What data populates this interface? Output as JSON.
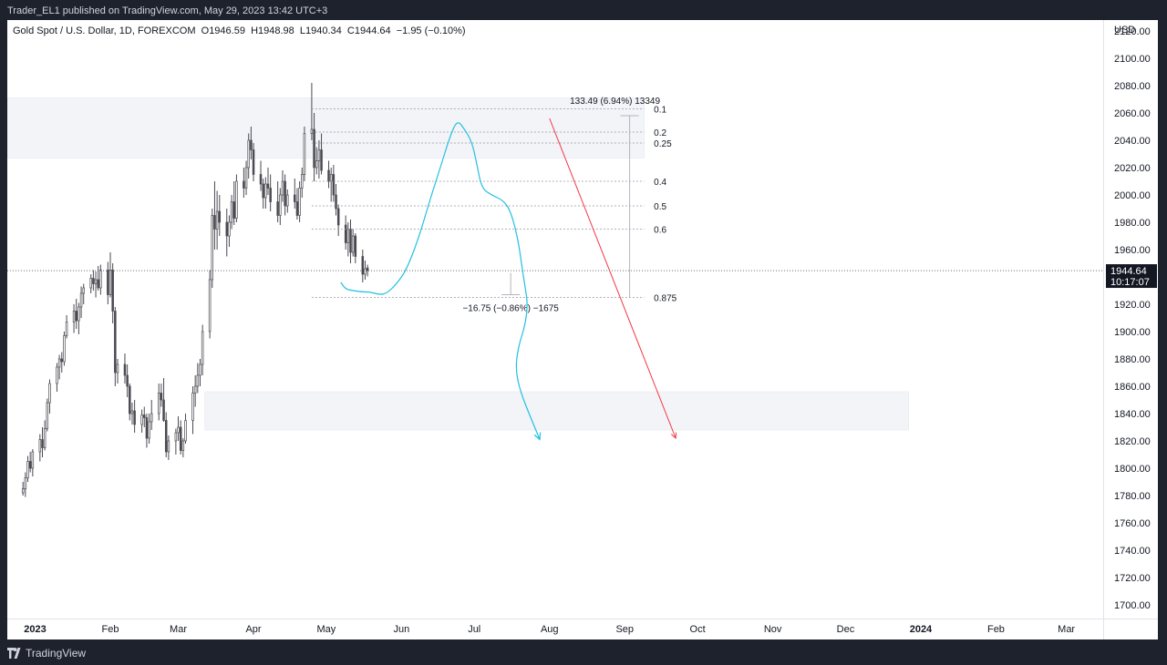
{
  "header": {
    "published_text": "Trader_EL1 published on TradingView.com, May 29, 2023 13:42 UTC+3"
  },
  "footer": {
    "brand": "TradingView"
  },
  "chart_data": {
    "type": "candlestick",
    "symbol_line": "Gold Spot / U.S. Dollar, 1D, FOREXCOM",
    "ohlc": {
      "open_label": "O",
      "open": "1946.59",
      "high_label": "H",
      "high": "1948.98",
      "low_label": "L",
      "low": "1940.34",
      "close_label": "C",
      "close": "1944.64",
      "change": "−1.95 (−0.10%)"
    },
    "currency": "USD",
    "ylim": [
      1690,
      2128
    ],
    "y_ticks": [
      "2120.00",
      "2100.00",
      "2080.00",
      "2060.00",
      "2040.00",
      "2020.00",
      "2000.00",
      "1980.00",
      "1960.00",
      "1940.00",
      "1920.00",
      "1900.00",
      "1880.00",
      "1860.00",
      "1840.00",
      "1820.00",
      "1800.00",
      "1780.00",
      "1760.00",
      "1740.00",
      "1720.00",
      "1700.00"
    ],
    "y_tick_values": [
      2120,
      2100,
      2080,
      2060,
      2040,
      2020,
      2000,
      1980,
      1960,
      1940,
      1920,
      1900,
      1880,
      1860,
      1840,
      1820,
      1800,
      1780,
      1760,
      1740,
      1720,
      1700
    ],
    "x_ticks": [
      {
        "label": "2023",
        "day": 0,
        "bold": true
      },
      {
        "label": "Feb",
        "day": 31
      },
      {
        "label": "Mar",
        "day": 59
      },
      {
        "label": "Apr",
        "day": 90
      },
      {
        "label": "May",
        "day": 120
      },
      {
        "label": "Jun",
        "day": 151
      },
      {
        "label": "Jul",
        "day": 181
      },
      {
        "label": "Aug",
        "day": 212
      },
      {
        "label": "Sep",
        "day": 243
      },
      {
        "label": "Oct",
        "day": 273
      },
      {
        "label": "Nov",
        "day": 304
      },
      {
        "label": "Dec",
        "day": 334
      },
      {
        "label": "2024",
        "day": 365,
        "bold": true
      },
      {
        "label": "Feb",
        "day": 396
      },
      {
        "label": "Mar",
        "day": 425
      }
    ],
    "price_label": {
      "price": "1944.64",
      "countdown": "10:17:07",
      "value": 1944.64
    },
    "zones": [
      {
        "from_day": -14,
        "to_day": 251,
        "low": 2027,
        "high": 2071
      },
      {
        "from_day": 70,
        "to_day": 360,
        "low": 1828,
        "high": 1856
      }
    ],
    "fib_levels": [
      {
        "label": "0.1",
        "price": 2063
      },
      {
        "label": "0.2",
        "price": 2046
      },
      {
        "label": "0.25",
        "price": 2038
      },
      {
        "label": "0.4",
        "price": 2010
      },
      {
        "label": "0.5",
        "price": 1992
      },
      {
        "label": "0.6",
        "price": 1975
      },
      {
        "label": "0.875",
        "price": 1925
      }
    ],
    "measure_up": {
      "label": "133.49 (6.94%) 13349",
      "day": 245,
      "from": 1925,
      "to": 2058
    },
    "measure_down": {
      "label": "−16.75 (−0.86%) −1675",
      "day": 196,
      "from": 1943,
      "to": 1927
    },
    "candles": [
      [
        -5,
        1782,
        1790,
        1780,
        1785
      ],
      [
        -4,
        1785,
        1797,
        1779,
        1793
      ],
      [
        -3,
        1793,
        1809,
        1790,
        1805
      ],
      [
        -2,
        1805,
        1812,
        1797,
        1800
      ],
      [
        -1,
        1800,
        1814,
        1794,
        1812
      ],
      [
        2,
        1812,
        1825,
        1805,
        1821
      ],
      [
        3,
        1821,
        1830,
        1808,
        1815
      ],
      [
        4,
        1815,
        1835,
        1813,
        1829
      ],
      [
        5,
        1829,
        1851,
        1827,
        1848
      ],
      [
        6,
        1848,
        1865,
        1840,
        1862
      ],
      [
        9,
        1862,
        1877,
        1856,
        1874
      ],
      [
        10,
        1874,
        1883,
        1865,
        1880
      ],
      [
        11,
        1880,
        1885,
        1870,
        1878
      ],
      [
        12,
        1878,
        1900,
        1875,
        1897
      ],
      [
        13,
        1897,
        1912,
        1895,
        1907
      ],
      [
        16,
        1907,
        1920,
        1899,
        1915
      ],
      [
        17,
        1915,
        1924,
        1902,
        1908
      ],
      [
        18,
        1908,
        1921,
        1898,
        1918
      ],
      [
        19,
        1918,
        1933,
        1910,
        1928
      ],
      [
        20,
        1928,
        1935,
        1920,
        1932
      ],
      [
        23,
        1932,
        1942,
        1928,
        1939
      ],
      [
        24,
        1939,
        1945,
        1930,
        1935
      ],
      [
        25,
        1935,
        1944,
        1925,
        1938
      ],
      [
        26,
        1938,
        1948,
        1930,
        1932
      ],
      [
        27,
        1932,
        1949,
        1927,
        1945
      ],
      [
        30,
        1945,
        1951,
        1920,
        1927
      ],
      [
        31,
        1927,
        1958,
        1925,
        1945
      ],
      [
        32,
        1945,
        1950,
        1906,
        1915
      ],
      [
        33,
        1915,
        1918,
        1860,
        1870
      ],
      [
        34,
        1870,
        1880,
        1862,
        1876
      ],
      [
        37,
        1876,
        1884,
        1862,
        1868
      ],
      [
        38,
        1868,
        1876,
        1852,
        1860
      ],
      [
        39,
        1860,
        1862,
        1835,
        1840
      ],
      [
        40,
        1840,
        1848,
        1832,
        1842
      ],
      [
        41,
        1842,
        1850,
        1826,
        1832
      ],
      [
        44,
        1832,
        1843,
        1826,
        1839
      ],
      [
        45,
        1839,
        1845,
        1830,
        1837
      ],
      [
        46,
        1837,
        1840,
        1815,
        1822
      ],
      [
        47,
        1822,
        1840,
        1818,
        1834
      ],
      [
        48,
        1834,
        1850,
        1828,
        1840
      ],
      [
        51,
        1840,
        1862,
        1835,
        1855
      ],
      [
        52,
        1855,
        1862,
        1845,
        1850
      ],
      [
        53,
        1850,
        1866,
        1834,
        1835
      ],
      [
        54,
        1835,
        1841,
        1808,
        1812
      ],
      [
        55,
        1812,
        1824,
        1806,
        1820
      ],
      [
        58,
        1820,
        1829,
        1810,
        1826
      ],
      [
        59,
        1826,
        1838,
        1820,
        1830
      ],
      [
        60,
        1830,
        1835,
        1810,
        1813
      ],
      [
        61,
        1813,
        1822,
        1808,
        1820
      ],
      [
        62,
        1820,
        1840,
        1818,
        1835
      ],
      [
        65,
        1835,
        1860,
        1825,
        1855
      ],
      [
        66,
        1855,
        1868,
        1845,
        1860
      ],
      [
        67,
        1860,
        1877,
        1855,
        1868
      ],
      [
        68,
        1868,
        1880,
        1860,
        1876
      ],
      [
        69,
        1876,
        1905,
        1868,
        1900
      ],
      [
        72,
        1900,
        1945,
        1895,
        1938
      ],
      [
        73,
        1938,
        1990,
        1932,
        1985
      ],
      [
        74,
        1985,
        2010,
        1960,
        1975
      ],
      [
        75,
        1975,
        2003,
        1960,
        1988
      ],
      [
        76,
        1988,
        2000,
        1970,
        1980
      ],
      [
        79,
        1980,
        1990,
        1955,
        1970
      ],
      [
        80,
        1970,
        1985,
        1962,
        1980
      ],
      [
        81,
        1980,
        2000,
        1975,
        1995
      ],
      [
        82,
        1995,
        2010,
        1978,
        1983
      ],
      [
        83,
        1983,
        2015,
        1980,
        2010
      ],
      [
        86,
        2010,
        2020,
        1998,
        2005
      ],
      [
        87,
        2005,
        2025,
        2000,
        2020
      ],
      [
        88,
        2020,
        2045,
        2012,
        2040
      ],
      [
        89,
        2040,
        2050,
        2026,
        2033
      ],
      [
        90,
        2033,
        2038,
        2010,
        2015
      ],
      [
        93,
        2015,
        2025,
        2003,
        2008
      ],
      [
        94,
        2008,
        2012,
        1990,
        1998
      ],
      [
        95,
        1998,
        2013,
        1990,
        2008
      ],
      [
        96,
        2008,
        2020,
        2000,
        2005
      ],
      [
        97,
        2005,
        2015,
        1988,
        1995
      ],
      [
        100,
        1995,
        2010,
        1980,
        1985
      ],
      [
        101,
        1985,
        2005,
        1978,
        2000
      ],
      [
        102,
        2000,
        2018,
        1995,
        2010
      ],
      [
        103,
        2010,
        2015,
        1985,
        1992
      ],
      [
        104,
        1992,
        2004,
        1987,
        2000
      ],
      [
        107,
        2000,
        2012,
        1990,
        1995
      ],
      [
        108,
        1995,
        2005,
        1982,
        1985
      ],
      [
        109,
        1985,
        2010,
        1980,
        2005
      ],
      [
        110,
        2005,
        2020,
        1998,
        2015
      ],
      [
        111,
        2015,
        2050,
        2010,
        2045
      ],
      [
        114,
        2045,
        2082,
        2040,
        2048
      ],
      [
        115,
        2048,
        2060,
        2010,
        2020
      ],
      [
        116,
        2020,
        2035,
        2015,
        2025
      ],
      [
        117,
        2025,
        2040,
        2012,
        2033
      ],
      [
        118,
        2033,
        2045,
        2015,
        2018
      ],
      [
        121,
        2018,
        2025,
        2005,
        2010
      ],
      [
        122,
        2010,
        2020,
        1995,
        2015
      ],
      [
        123,
        2015,
        2022,
        1995,
        2000
      ],
      [
        124,
        2000,
        2008,
        1985,
        1990
      ],
      [
        125,
        1990,
        1993,
        1970,
        1978
      ],
      [
        128,
        1978,
        1985,
        1960,
        1965
      ],
      [
        129,
        1965,
        1980,
        1955,
        1975
      ],
      [
        130,
        1975,
        1982,
        1950,
        1958
      ],
      [
        131,
        1958,
        1975,
        1955,
        1970
      ],
      [
        132,
        1970,
        1972,
        1950,
        1955
      ],
      [
        135,
        1955,
        1960,
        1936,
        1942
      ],
      [
        136,
        1942,
        1952,
        1938,
        1946
      ],
      [
        137,
        1946.59,
        1948.98,
        1940.34,
        1944.64
      ]
    ],
    "curve_blue": [
      [
        126,
        1936
      ],
      [
        128,
        1931
      ],
      [
        131,
        1930
      ],
      [
        135,
        1929
      ],
      [
        138,
        1929
      ],
      [
        142,
        1927
      ],
      [
        145,
        1928
      ],
      [
        149,
        1935
      ],
      [
        153,
        1945
      ],
      [
        158,
        1968
      ],
      [
        163,
        1998
      ],
      [
        167,
        2020
      ],
      [
        171,
        2043
      ],
      [
        174,
        2055
      ],
      [
        177,
        2048
      ],
      [
        180,
        2039
      ],
      [
        182,
        2023
      ],
      [
        184,
        2005
      ],
      [
        188,
        2000
      ],
      [
        193,
        1996
      ],
      [
        196,
        1988
      ],
      [
        199,
        1968
      ],
      [
        201,
        1943
      ],
      [
        202,
        1932
      ],
      [
        203,
        1920
      ],
      [
        202,
        1905
      ],
      [
        199,
        1888
      ],
      [
        198,
        1872
      ],
      [
        200,
        1856
      ],
      [
        204,
        1838
      ],
      [
        208,
        1821
      ]
    ],
    "arrow_red": {
      "from": [
        212,
        2056
      ],
      "to": [
        264,
        1822
      ]
    }
  }
}
